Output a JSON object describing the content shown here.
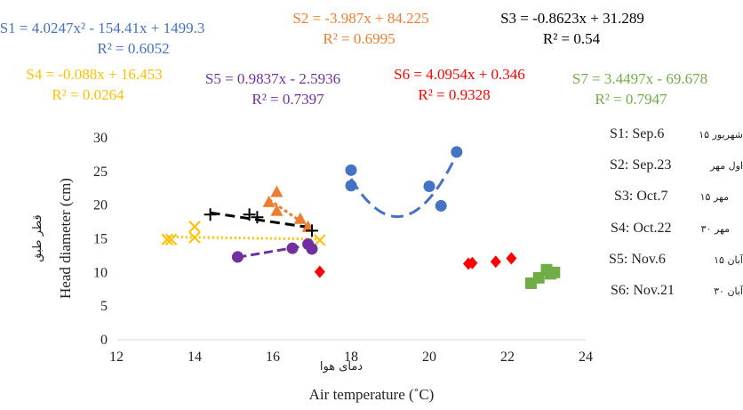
{
  "chart_data": {
    "type": "scatter",
    "xlabel": "Air temperature (˚C)",
    "xlabel_fa": "دمای هوا",
    "ylabel": "Head diameter (cm)",
    "ylabel_fa": "قطر طبق",
    "xlim": [
      12,
      24
    ],
    "ylim": [
      0,
      30
    ],
    "x_ticks": [
      "12",
      "14",
      "16",
      "18",
      "20",
      "22",
      "24"
    ],
    "y_ticks": [
      "0",
      "5",
      "10",
      "15",
      "20",
      "25",
      "30"
    ],
    "grid": false,
    "legend_position": "right",
    "series": [
      {
        "name": "S1: Sep.6",
        "name_fa": "۱۵ شهریور",
        "color": "#4472C4",
        "marker": "circle",
        "fit": "poly2",
        "coef": [
          4.0247,
          -154.41,
          1499.3
        ],
        "equation": "S1 = 4.0247x² - 154.41x + 1499.3",
        "r2": "R² = 0.6052",
        "points": [
          [
            18.0,
            25.2
          ],
          [
            18.0,
            22.9
          ],
          [
            20.0,
            22.8
          ],
          [
            20.3,
            19.9
          ],
          [
            20.7,
            27.9
          ]
        ]
      },
      {
        "name": "S2: Sep.23",
        "name_fa": "اول مهر",
        "color": "#ED7D31",
        "marker": "triangle",
        "fit": "linear",
        "coef": [
          -3.987,
          84.225
        ],
        "equation": "S2 = -3.987x + 84.225",
        "r2": "R² = 0.6995",
        "points": [
          [
            15.9,
            20.5
          ],
          [
            16.1,
            22.0
          ],
          [
            16.1,
            19.2
          ],
          [
            16.7,
            18.0
          ],
          [
            16.9,
            16.8
          ]
        ]
      },
      {
        "name": "S3: Oct.7",
        "name_fa": "۱۵ مهر",
        "color": "#000000",
        "marker": "plus",
        "fit": "linear",
        "coef": [
          -0.8623,
          31.289
        ],
        "equation": "S3 = -0.8623x + 31.289",
        "r2": "R² = 0.54",
        "points": [
          [
            14.4,
            18.6
          ],
          [
            15.4,
            18.6
          ],
          [
            15.6,
            18.2
          ],
          [
            17.0,
            16.2
          ]
        ]
      },
      {
        "name": "S4: Oct.22",
        "name_fa": "۳۰ مهر",
        "color": "#FFC000",
        "marker": "x",
        "fit": "linear",
        "coef": [
          -0.088,
          16.453
        ],
        "equation": "S4 = -0.088x + 16.453",
        "r2": "R² = 0.0264",
        "points": [
          [
            13.3,
            14.9
          ],
          [
            13.4,
            14.9
          ],
          [
            14.0,
            16.8
          ],
          [
            14.0,
            15.2
          ],
          [
            17.2,
            14.8
          ]
        ]
      },
      {
        "name": "S5: Nov.6",
        "name_fa": "۱۵ آبان",
        "color": "#7030A0",
        "marker": "circle",
        "fit": "linear",
        "coef": [
          0.9837,
          -2.5936
        ],
        "equation": "S5 = 0.9837x - 2.5936",
        "r2": "R² = 0.7397",
        "points": [
          [
            15.1,
            12.3
          ],
          [
            16.5,
            13.6
          ],
          [
            16.9,
            14.2
          ],
          [
            17.0,
            13.5
          ]
        ]
      },
      {
        "name": "S6: Nov.21",
        "name_fa": "۳۰ آبان",
        "color": "#FF0000",
        "marker": "diamond",
        "fit": "linear",
        "coef": [
          4.0954,
          0.346
        ],
        "equation": "S6 = 4.0954x + 0.346",
        "r2": "R² = 0.9328",
        "points": [
          [
            17.2,
            10.1
          ],
          [
            21.0,
            11.3
          ],
          [
            21.1,
            11.4
          ],
          [
            21.7,
            11.6
          ],
          [
            22.1,
            12.1
          ]
        ]
      },
      {
        "name": "S7",
        "color": "#70AD47",
        "marker": "square",
        "fit": "linear",
        "coef": [
          3.4497,
          -69.678
        ],
        "equation": "S7 = 3.4497x - 69.678",
        "r2": "R² = 0.7947",
        "points": [
          [
            22.6,
            8.4
          ],
          [
            22.8,
            9.2
          ],
          [
            23.0,
            10.4
          ],
          [
            23.1,
            9.8
          ],
          [
            23.2,
            10.0
          ]
        ]
      }
    ]
  }
}
